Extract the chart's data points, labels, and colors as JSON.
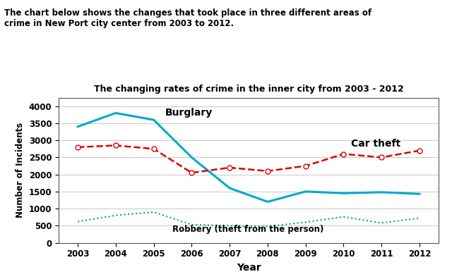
{
  "title": "The changing rates of crime in the inner city from 2003 - 2012",
  "xlabel": "Year",
  "ylabel": "Number of Incidents",
  "suptitle": "The chart below shows the changes that took place in three different areas of\ncrime in New Port city center from 2003 to 2012.",
  "years": [
    2003,
    2004,
    2005,
    2006,
    2007,
    2008,
    2009,
    2010,
    2011,
    2012
  ],
  "burglary": [
    3400,
    3800,
    3600,
    2500,
    1600,
    1200,
    1500,
    1450,
    1480,
    1430
  ],
  "car_theft": [
    2800,
    2850,
    2750,
    2050,
    2200,
    2100,
    2250,
    2600,
    2500,
    2700
  ],
  "robbery": [
    620,
    800,
    900,
    530,
    500,
    480,
    600,
    760,
    580,
    720
  ],
  "burglary_color": "#00aacc",
  "car_theft_color": "#dd0000",
  "robbery_color": "#00aa66",
  "ylim": [
    0,
    4250
  ],
  "yticks": [
    0,
    500,
    1000,
    1500,
    2000,
    2500,
    3000,
    3500,
    4000
  ],
  "bg_color": "#ffffff",
  "grid_color": "#cccccc"
}
